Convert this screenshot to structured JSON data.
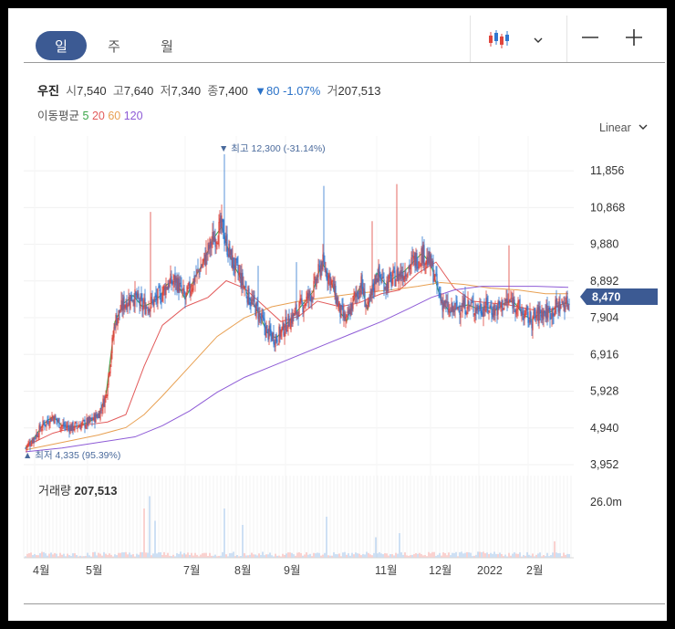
{
  "period_tabs": [
    {
      "label": "일",
      "active": true
    },
    {
      "label": "주",
      "active": false
    },
    {
      "label": "월",
      "active": false
    }
  ],
  "icons": {
    "chart_type": "candlestick-icon",
    "dropdown": "chevron-down-icon",
    "zoom_out": "minus-icon",
    "zoom_in": "plus-icon"
  },
  "stock": {
    "name": "우진",
    "open_label": "시",
    "open": "7,540",
    "high_label": "고",
    "high": "7,640",
    "low_label": "저",
    "low": "7,340",
    "close_label": "종",
    "close": "7,400",
    "change": "▼80 -1.07%",
    "volume_label": "거",
    "volume": "207,513"
  },
  "moving_average": {
    "label": "이동평균",
    "periods": [
      {
        "label": "5",
        "color": "#3aa548"
      },
      {
        "label": "20",
        "color": "#e25b5b"
      },
      {
        "label": "60",
        "color": "#e8a052"
      },
      {
        "label": "120",
        "color": "#8e5bd6"
      }
    ]
  },
  "scale_label": "Linear",
  "colors": {
    "up": "#e0453c",
    "down": "#2f78d0",
    "badge": "#3c5a93",
    "annotation": "#4a6a9c"
  },
  "chart_data": {
    "type": "candlestick",
    "title": "",
    "ylim": [
      3952,
      12300
    ],
    "y_ticks": [
      "11,856",
      "10,868",
      "9,880",
      "8,892",
      "7,904",
      "6,916",
      "5,928",
      "4,940",
      "3,952"
    ],
    "x_tick_labels": [
      "4월",
      "5월",
      "7월",
      "8월",
      "9월",
      "11월",
      "12월",
      "2022",
      "2월"
    ],
    "current_price_badge": "8,470",
    "max_annotation": "▼ 최고 12,300 (-31.14%)",
    "min_annotation": "▲ 최저 4,335 (95.39%)",
    "volume_label": "거래량",
    "volume_value": "207,513",
    "volume_axis_tick": "26.0m",
    "grid": true,
    "ma_series": {
      "ma5": [
        [
          0,
          4400
        ],
        [
          10,
          4700
        ],
        [
          20,
          5050
        ],
        [
          30,
          5250
        ],
        [
          40,
          5000
        ],
        [
          50,
          4950
        ],
        [
          58,
          5000
        ],
        [
          70,
          5100
        ],
        [
          80,
          5300
        ],
        [
          88,
          5800
        ],
        [
          98,
          7800
        ],
        [
          108,
          8300
        ],
        [
          118,
          8500
        ],
        [
          128,
          8200
        ],
        [
          138,
          8300
        ],
        [
          148,
          8500
        ],
        [
          155,
          8800
        ],
        [
          165,
          8900
        ],
        [
          175,
          8400
        ],
        [
          185,
          8950
        ],
        [
          195,
          9400
        ],
        [
          205,
          10000
        ],
        [
          215,
          10350
        ],
        [
          225,
          9500
        ],
        [
          235,
          9000
        ],
        [
          245,
          8450
        ],
        [
          255,
          8050
        ],
        [
          265,
          7500
        ],
        [
          275,
          7350
        ],
        [
          285,
          7700
        ],
        [
          295,
          8000
        ],
        [
          305,
          8300
        ],
        [
          315,
          8600
        ],
        [
          325,
          9400
        ],
        [
          335,
          8900
        ],
        [
          345,
          8050
        ],
        [
          352,
          7800
        ],
        [
          360,
          8400
        ],
        [
          368,
          8800
        ],
        [
          375,
          8100
        ],
        [
          385,
          9100
        ],
        [
          395,
          8800
        ],
        [
          405,
          9000
        ],
        [
          415,
          9150
        ],
        [
          425,
          9400
        ],
        [
          435,
          9650
        ],
        [
          445,
          9300
        ],
        [
          455,
          8400
        ],
        [
          465,
          8050
        ],
        [
          475,
          8200
        ],
        [
          485,
          8250
        ],
        [
          495,
          8150
        ],
        [
          505,
          8200
        ],
        [
          515,
          8100
        ],
        [
          525,
          8300
        ],
        [
          535,
          8350
        ],
        [
          545,
          8000
        ],
        [
          555,
          7850
        ],
        [
          565,
          8050
        ],
        [
          575,
          8050
        ],
        [
          585,
          8250
        ],
        [
          595,
          8300
        ]
      ],
      "ma20": [
        [
          0,
          4450
        ],
        [
          30,
          4800
        ],
        [
          60,
          5000
        ],
        [
          90,
          5100
        ],
        [
          110,
          5300
        ],
        [
          130,
          6600
        ],
        [
          150,
          7700
        ],
        [
          175,
          8200
        ],
        [
          200,
          8450
        ],
        [
          220,
          8900
        ],
        [
          240,
          8700
        ],
        [
          260,
          8250
        ],
        [
          280,
          7800
        ],
        [
          300,
          7950
        ],
        [
          320,
          8350
        ],
        [
          345,
          8200
        ],
        [
          365,
          8300
        ],
        [
          390,
          8550
        ],
        [
          410,
          8650
        ],
        [
          430,
          9100
        ],
        [
          450,
          9400
        ],
        [
          470,
          8700
        ],
        [
          490,
          8350
        ],
        [
          510,
          8300
        ],
        [
          530,
          8250
        ],
        [
          550,
          8150
        ],
        [
          570,
          8050
        ],
        [
          595,
          8350
        ]
      ],
      "ma60": [
        [
          0,
          4350
        ],
        [
          40,
          4550
        ],
        [
          80,
          4750
        ],
        [
          110,
          4950
        ],
        [
          130,
          5300
        ],
        [
          150,
          5800
        ],
        [
          180,
          6600
        ],
        [
          210,
          7400
        ],
        [
          240,
          7900
        ],
        [
          270,
          8200
        ],
        [
          300,
          8350
        ],
        [
          330,
          8450
        ],
        [
          360,
          8550
        ],
        [
          400,
          8650
        ],
        [
          430,
          8750
        ],
        [
          455,
          8850
        ],
        [
          480,
          8800
        ],
        [
          510,
          8700
        ],
        [
          540,
          8650
        ],
        [
          570,
          8550
        ],
        [
          595,
          8550
        ]
      ],
      "ma120": [
        [
          0,
          4300
        ],
        [
          40,
          4400
        ],
        [
          80,
          4550
        ],
        [
          120,
          4700
        ],
        [
          150,
          5000
        ],
        [
          180,
          5400
        ],
        [
          210,
          5900
        ],
        [
          240,
          6300
        ],
        [
          270,
          6600
        ],
        [
          300,
          6900
        ],
        [
          330,
          7200
        ],
        [
          360,
          7500
        ],
        [
          390,
          7800
        ],
        [
          420,
          8150
        ],
        [
          445,
          8450
        ],
        [
          470,
          8650
        ],
        [
          500,
          8750
        ],
        [
          530,
          8750
        ],
        [
          560,
          8750
        ],
        [
          595,
          8720
        ]
      ]
    }
  }
}
